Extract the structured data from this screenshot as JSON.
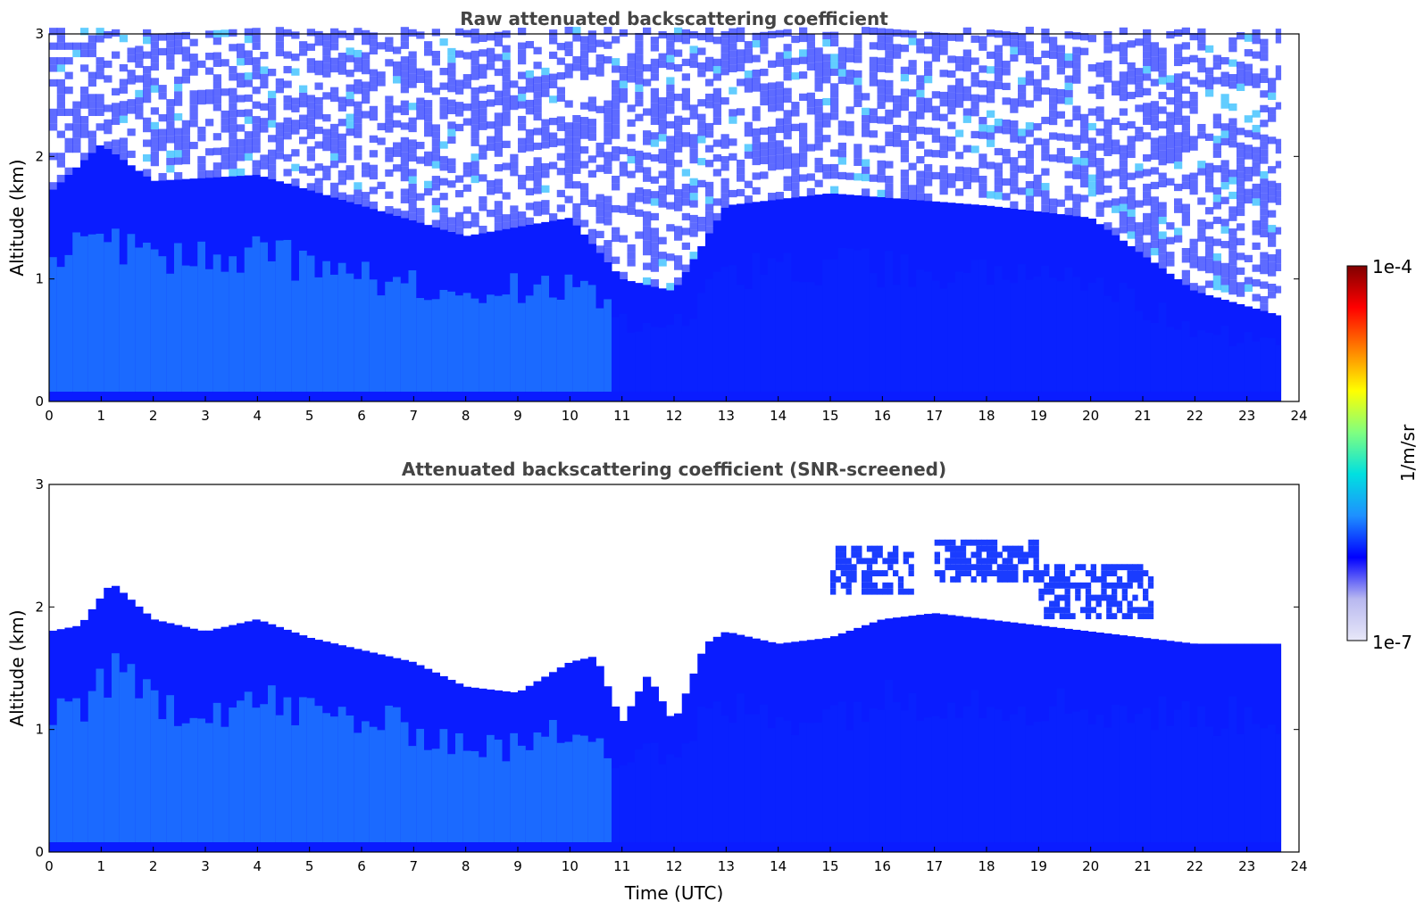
{
  "chart_data": [
    {
      "type": "heatmap",
      "title": "Raw attenuated backscattering coefficient",
      "xlabel": "",
      "ylabel": "Altitude (km)",
      "xlim": [
        0,
        24
      ],
      "ylim": [
        0,
        3
      ],
      "xticks": [
        "0",
        "1",
        "2",
        "3",
        "4",
        "5",
        "6",
        "7",
        "8",
        "9",
        "10",
        "11",
        "12",
        "13",
        "14",
        "15",
        "16",
        "17",
        "18",
        "19",
        "20",
        "21",
        "22",
        "23",
        "24"
      ],
      "yticks": [
        "0",
        "1",
        "2",
        "3"
      ],
      "data_end_time": 23.65,
      "color_scale": "log",
      "screened": false,
      "features": {
        "noise_floor_altitude_km": [
          {
            "t": 0,
            "z": 1.7
          },
          {
            "t": 1,
            "z": 2.1
          },
          {
            "t": 2,
            "z": 1.8
          },
          {
            "t": 4,
            "z": 1.85
          },
          {
            "t": 6,
            "z": 1.6
          },
          {
            "t": 8,
            "z": 1.35
          },
          {
            "t": 10,
            "z": 1.5
          },
          {
            "t": 11,
            "z": 1.0
          },
          {
            "t": 12,
            "z": 0.9
          },
          {
            "t": 13,
            "z": 1.6
          },
          {
            "t": 15,
            "z": 1.7
          },
          {
            "t": 18,
            "z": 1.6
          },
          {
            "t": 20,
            "z": 1.5
          },
          {
            "t": 22,
            "z": 0.9
          },
          {
            "t": 23.65,
            "z": 0.7
          }
        ]
      }
    },
    {
      "type": "heatmap",
      "title": "Attenuated backscattering coefficient (SNR-screened)",
      "xlabel": "Time (UTC)",
      "ylabel": "Altitude (km)",
      "xlim": [
        0,
        24
      ],
      "ylim": [
        0,
        3
      ],
      "xticks": [
        "0",
        "1",
        "2",
        "3",
        "4",
        "5",
        "6",
        "7",
        "8",
        "9",
        "10",
        "11",
        "12",
        "13",
        "14",
        "15",
        "16",
        "17",
        "18",
        "19",
        "20",
        "21",
        "22",
        "23",
        "24"
      ],
      "yticks": [
        "0",
        "1",
        "2",
        "3"
      ],
      "data_end_time": 23.65,
      "color_scale": "log",
      "screened": true,
      "features": {
        "boundary_layer_top_km": [
          {
            "t": 0,
            "z": 1.8
          },
          {
            "t": 0.6,
            "z": 1.85
          },
          {
            "t": 1.2,
            "z": 2.2
          },
          {
            "t": 2,
            "z": 1.9
          },
          {
            "t": 3,
            "z": 1.8
          },
          {
            "t": 4,
            "z": 1.9
          },
          {
            "t": 5,
            "z": 1.75
          },
          {
            "t": 6,
            "z": 1.65
          },
          {
            "t": 7,
            "z": 1.55
          },
          {
            "t": 8,
            "z": 1.35
          },
          {
            "t": 9,
            "z": 1.3
          },
          {
            "t": 10,
            "z": 1.55
          },
          {
            "t": 10.5,
            "z": 1.6
          },
          {
            "t": 11,
            "z": 1.05
          },
          {
            "t": 11.5,
            "z": 1.45
          },
          {
            "t": 12,
            "z": 1.05
          },
          {
            "t": 12.6,
            "z": 1.7
          },
          {
            "t": 13,
            "z": 1.8
          },
          {
            "t": 14,
            "z": 1.7
          },
          {
            "t": 15,
            "z": 1.75
          },
          {
            "t": 16,
            "z": 1.9
          },
          {
            "t": 17,
            "z": 1.95
          },
          {
            "t": 18,
            "z": 1.9
          },
          {
            "t": 19,
            "z": 1.85
          },
          {
            "t": 20,
            "z": 1.8
          },
          {
            "t": 21,
            "z": 1.75
          },
          {
            "t": 22,
            "z": 1.7
          },
          {
            "t": 23.65,
            "z": 1.7
          }
        ],
        "elevated_layers": [
          {
            "t_start": 15.0,
            "t_end": 16.6,
            "z_bottom": 2.1,
            "z_top": 2.45
          },
          {
            "t_start": 17.0,
            "t_end": 19.0,
            "z_bottom": 2.2,
            "z_top": 2.5
          },
          {
            "t_start": 19.0,
            "t_end": 21.2,
            "z_bottom": 1.9,
            "z_top": 2.3
          }
        ]
      }
    }
  ],
  "colorbar": {
    "label": "1/m/sr",
    "min_label": "1e-7",
    "max_label": "1e-4",
    "scale": "log",
    "colors": [
      "#e8e8f8",
      "#b8b8f0",
      "#0000ff",
      "#1e90ff",
      "#00e0e0",
      "#80ff80",
      "#ffff00",
      "#ff8000",
      "#ff0000",
      "#800000"
    ]
  }
}
